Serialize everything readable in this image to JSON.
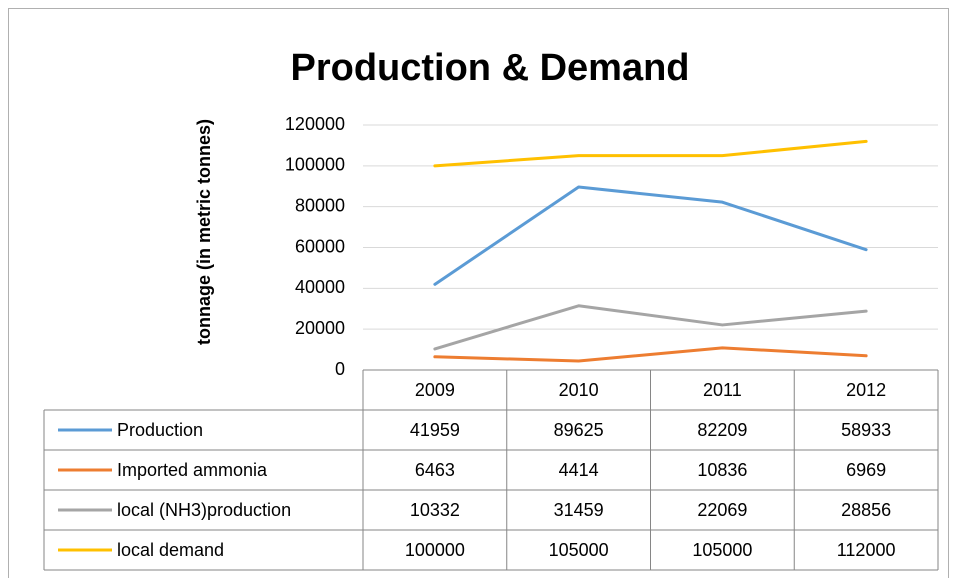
{
  "chart_data": {
    "type": "line",
    "title": "Production & Demand",
    "y_label": "tonnage (in metric tonnes)",
    "categories": [
      "2009",
      "2010",
      "2011",
      "2012"
    ],
    "series": [
      {
        "name": "Production",
        "color": "#5b9bd5",
        "values": [
          41959,
          89625,
          82209,
          58933
        ]
      },
      {
        "name": "Imported ammonia",
        "color": "#ed7d31",
        "values": [
          6463,
          4414,
          10836,
          6969
        ]
      },
      {
        "name": "local (NH3)production",
        "color": "#a5a5a5",
        "values": [
          10332,
          31459,
          22069,
          28856
        ]
      },
      {
        "name": "local demand",
        "color": "#ffc000",
        "values": [
          100000,
          105000,
          105000,
          112000
        ]
      }
    ],
    "ylim": [
      0,
      120000
    ],
    "yticks": [
      0,
      20000,
      40000,
      60000,
      80000,
      100000,
      120000
    ],
    "grid": true,
    "data_table": true
  }
}
